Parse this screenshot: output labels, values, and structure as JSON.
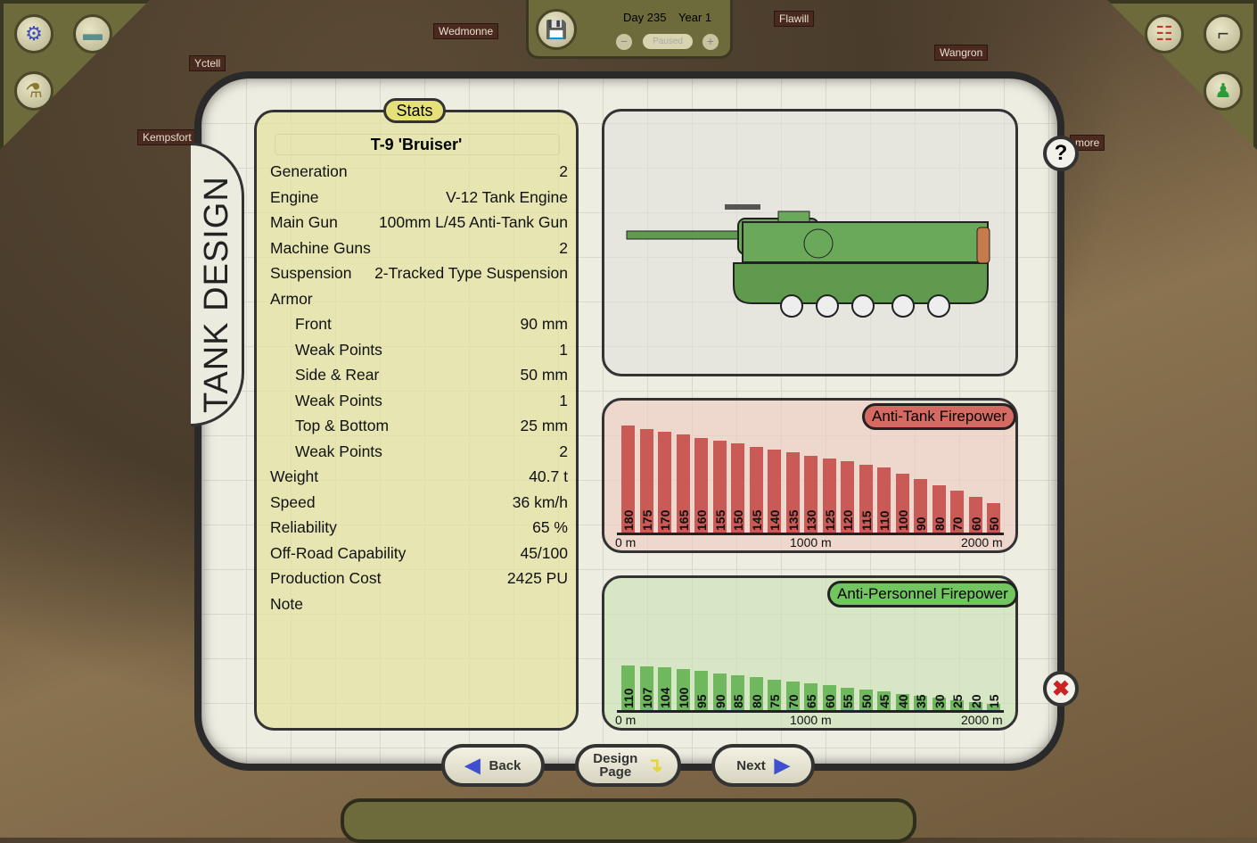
{
  "map": {
    "labels": [
      "Wedmonne",
      "Yctell",
      "Kempsfort",
      "Flawill",
      "Wangron",
      "more"
    ]
  },
  "topbar": {
    "day": "Day 235",
    "year": "Year 1",
    "speed_status": "Paused",
    "save_icon": "floppy-icon",
    "minus": "−",
    "plus": "+"
  },
  "corners": {
    "left": [
      "gear-icon",
      "tank-icon",
      "flask-icon"
    ],
    "right": [
      "org-chart-icon",
      "rifle-icon",
      "soldiers-icon"
    ]
  },
  "tab_title": "TANK DESIGN",
  "stats": {
    "header": "Stats",
    "tank_name": "T-9 'Bruiser'",
    "rows": [
      {
        "label": "Generation",
        "value": "2",
        "indent": false
      },
      {
        "label": "Engine",
        "value": "V-12 Tank Engine",
        "indent": false
      },
      {
        "label": "Main Gun",
        "value": "100mm L/45 Anti-Tank Gun",
        "indent": false
      },
      {
        "label": "Machine Guns",
        "value": "2",
        "indent": false
      },
      {
        "label": "Suspension",
        "value": "2-Tracked Type Suspension",
        "indent": false
      },
      {
        "label": "Armor",
        "value": "",
        "indent": false
      },
      {
        "label": "Front",
        "value": "90 mm",
        "indent": true
      },
      {
        "label": "Weak Points",
        "value": "1",
        "indent": true
      },
      {
        "label": "Side & Rear",
        "value": "50 mm",
        "indent": true
      },
      {
        "label": "Weak Points",
        "value": "1",
        "indent": true
      },
      {
        "label": "Top & Bottom",
        "value": "25 mm",
        "indent": true
      },
      {
        "label": "Weak Points",
        "value": "2",
        "indent": true
      },
      {
        "label": "Weight",
        "value": "40.7 t",
        "indent": false
      },
      {
        "label": "Speed",
        "value": "36 km/h",
        "indent": false
      },
      {
        "label": "Reliability",
        "value": "65 %",
        "indent": false
      },
      {
        "label": "Off-Road Capability",
        "value": "45/100",
        "indent": false
      },
      {
        "label": "Production Cost",
        "value": "2425 PU",
        "indent": false
      },
      {
        "label": "Note",
        "value": "",
        "indent": false
      }
    ]
  },
  "chart_data": [
    {
      "type": "bar",
      "title": "Anti-Tank Firepower",
      "x_ticks": [
        "0 m",
        "1000 m",
        "2000 m"
      ],
      "xlim": [
        0,
        2000
      ],
      "ylim": [
        0,
        200
      ],
      "color": "#c95a55",
      "values": [
        180,
        175,
        170,
        165,
        160,
        155,
        150,
        145,
        140,
        135,
        130,
        125,
        120,
        115,
        110,
        100,
        90,
        80,
        70,
        60,
        50
      ]
    },
    {
      "type": "bar",
      "title": "Anti-Personnel Firepower",
      "x_ticks": [
        "0 m",
        "1000 m",
        "2000 m"
      ],
      "xlim": [
        0,
        2000
      ],
      "ylim": [
        0,
        290
      ],
      "color": "#6fb85e",
      "values": [
        110,
        107,
        104,
        100,
        95,
        90,
        85,
        80,
        75,
        70,
        65,
        60,
        55,
        50,
        45,
        40,
        35,
        30,
        25,
        20,
        15
      ]
    }
  ],
  "buttons": {
    "back": "Back",
    "design_line1": "Design",
    "design_line2": "Page",
    "next": "Next",
    "help": "?"
  },
  "colors": {
    "panel_olive": "#6d6a3c",
    "stats_yellow": "#e4e2a0",
    "at_red": "#c95a55",
    "ap_green": "#6fb85e",
    "arrow_blue": "#3f4fd0"
  }
}
